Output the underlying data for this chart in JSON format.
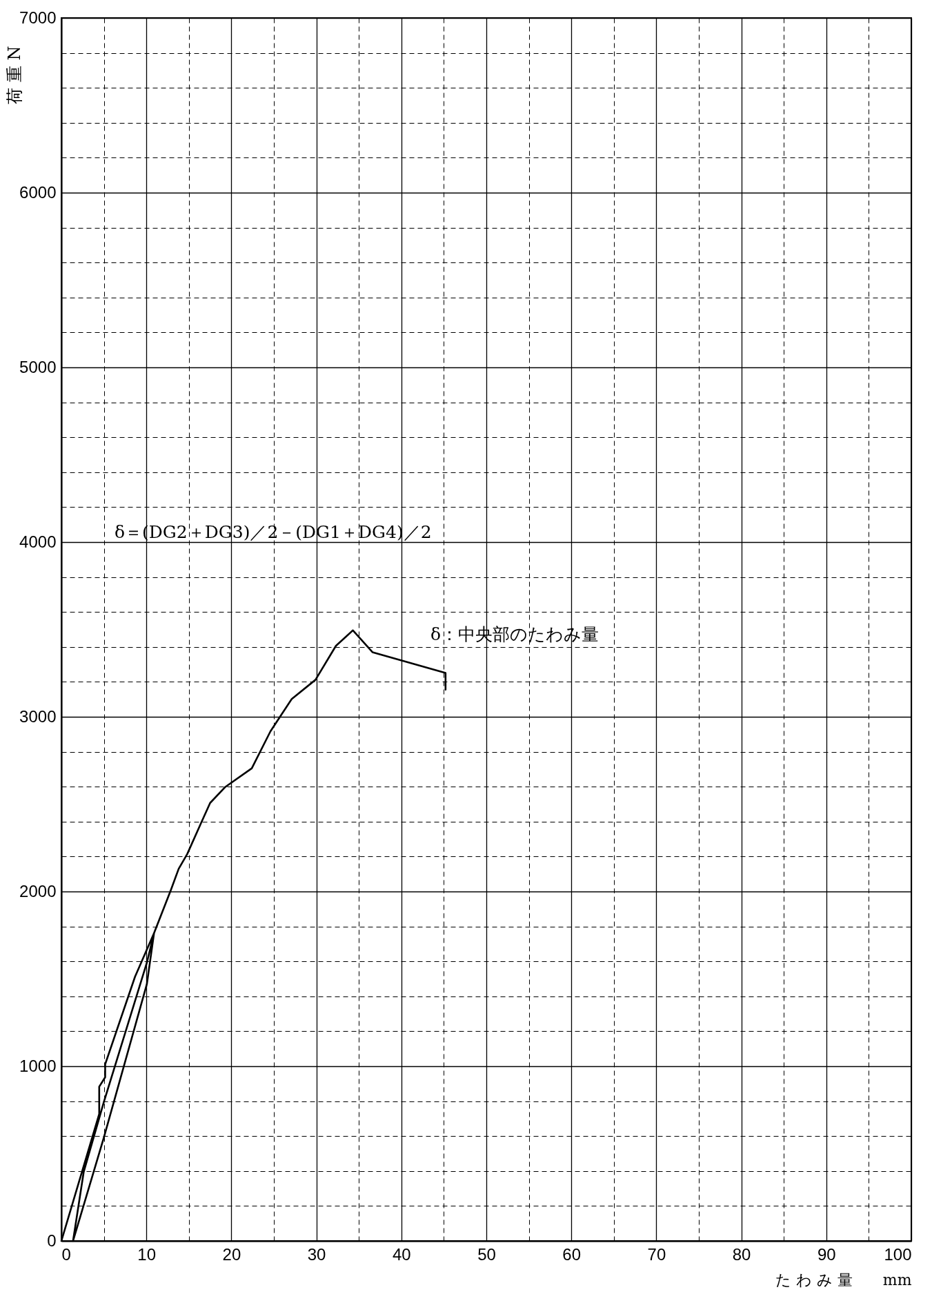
{
  "chart_data": {
    "type": "line",
    "xlabel": "た わ み 量　　mm",
    "ylabel": "荷 重 N",
    "annotations": [
      "δ＝(DG2＋DG3)／2－(DG1＋DG4)／2",
      "δ：中央部のたわみ量"
    ],
    "xlim": [
      0,
      100
    ],
    "ylim": [
      0,
      7000
    ],
    "xticks": [
      0,
      {
        "value": 5,
        "label": null
      },
      10,
      {
        "value": 15,
        "label": null
      },
      20,
      {
        "value": 25,
        "label": null
      },
      30,
      {
        "value": 35,
        "label": null
      },
      40,
      {
        "value": 45,
        "label": null
      },
      50,
      {
        "value": 55,
        "label": null
      },
      60,
      {
        "value": 65,
        "label": null
      },
      70,
      {
        "value": 75,
        "label": null
      },
      80,
      {
        "value": 85,
        "label": null
      },
      90,
      {
        "value": 95,
        "label": null
      },
      100
    ],
    "yticks": [
      0,
      {
        "value": 200,
        "label": null
      },
      {
        "value": 400,
        "label": null
      },
      {
        "value": 600,
        "label": null
      },
      {
        "value": 800,
        "label": null
      },
      1000,
      {
        "value": 1200,
        "label": null
      },
      {
        "value": 1400,
        "label": null
      },
      {
        "value": 1600,
        "label": null
      },
      {
        "value": 1800,
        "label": null
      },
      2000,
      {
        "value": 2200,
        "label": null
      },
      {
        "value": 2400,
        "label": null
      },
      {
        "value": 2600,
        "label": null
      },
      {
        "value": 2800,
        "label": null
      },
      3000,
      {
        "value": 3200,
        "label": null
      },
      {
        "value": 3400,
        "label": null
      },
      {
        "value": 3600,
        "label": null
      },
      {
        "value": 3800,
        "label": null
      },
      4000,
      {
        "value": 4200,
        "label": null
      },
      {
        "value": 4400,
        "label": null
      },
      {
        "value": 4600,
        "label": null
      },
      {
        "value": 4800,
        "label": null
      },
      5000,
      {
        "value": 5200,
        "label": null
      },
      {
        "value": 5400,
        "label": null
      },
      {
        "value": 5600,
        "label": null
      },
      {
        "value": 5800,
        "label": null
      },
      6000,
      {
        "value": 6200,
        "label": null
      },
      {
        "value": 6400,
        "label": null
      },
      {
        "value": 6600,
        "label": null
      },
      {
        "value": 6800,
        "label": null
      },
      7000
    ],
    "grid": true,
    "marker": "none",
    "line_style": "solid",
    "x": [
      0,
      4.45,
      4.45,
      5.15,
      5.15,
      8.66,
      10.9,
      10.06,
      5.0,
      1.37,
      2.63,
      5.0,
      10.06,
      10.9,
      12.9,
      13.8,
      14.8,
      16.4,
      17.5,
      19.3,
      22.4,
      24.6,
      27.1,
      29.9,
      32.3,
      34.3,
      36.6,
      45.2,
      45.2
    ],
    "series": [
      {
        "color": "#000000",
        "values": [
          0,
          727,
          883,
          937,
          1011,
          1512,
          1762,
          1471,
          592,
          0,
          396,
          796,
          1593,
          1762,
          2011,
          2130,
          2214,
          2388,
          2507,
          2599,
          2705,
          2917,
          3102,
          3212,
          3406,
          3495,
          3370,
          3251,
          3155
        ]
      }
    ]
  }
}
